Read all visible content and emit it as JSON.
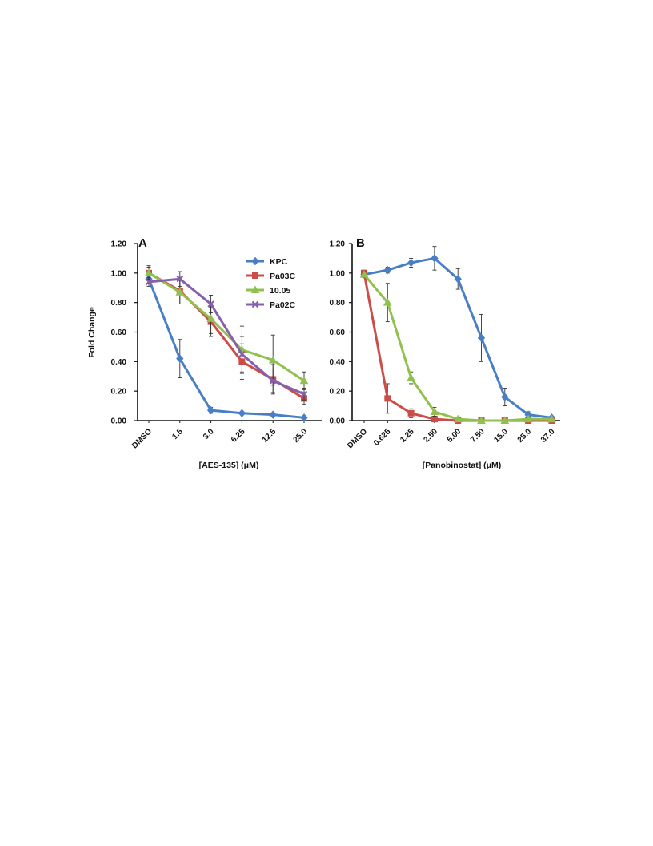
{
  "chart_data": [
    {
      "type": "line",
      "panel_label": "A",
      "xlabel": "[AES-135] (μM)",
      "ylabel": "Fold Change",
      "categories": [
        "DMSO",
        "1.5",
        "3.0",
        "6.25",
        "12.5",
        "25.0"
      ],
      "yticks": [
        "0.00",
        "0.20",
        "0.40",
        "0.60",
        "0.80",
        "1.00",
        "1.20"
      ],
      "ylim": [
        0,
        1.2
      ],
      "grid": false,
      "legend": "top-right",
      "series": [
        {
          "name": "KPC",
          "color": "#4a7ec4",
          "marker": "diamond",
          "values": [
            0.96,
            0.42,
            0.07,
            0.05,
            0.04,
            0.02
          ],
          "errors": [
            0.03,
            0.13,
            0.02,
            0.01,
            0.01,
            0.01
          ]
        },
        {
          "name": "Pa03C",
          "color": "#cc4c48",
          "marker": "square",
          "values": [
            1.0,
            0.88,
            0.67,
            0.4,
            0.28,
            0.15
          ],
          "errors": [
            0.05,
            0.09,
            0.1,
            0.12,
            0.1,
            0.04
          ]
        },
        {
          "name": "10.05",
          "color": "#92c050",
          "marker": "triangle",
          "values": [
            1.0,
            0.87,
            0.69,
            0.48,
            0.41,
            0.27
          ],
          "errors": [
            0.04,
            0.08,
            0.1,
            0.16,
            0.17,
            0.06
          ]
        },
        {
          "name": "Pa02C",
          "color": "#8560ad",
          "marker": "x",
          "values": [
            0.94,
            0.96,
            0.79,
            0.45,
            0.27,
            0.18
          ],
          "errors": [
            0.03,
            0.05,
            0.06,
            0.12,
            0.08,
            0.04
          ]
        }
      ]
    },
    {
      "type": "line",
      "panel_label": "B",
      "xlabel": "[Panobinostat] (μM)",
      "ylabel": "",
      "categories": [
        "DMSO",
        "0.625",
        "1.25",
        "2.50",
        "5.00",
        "7.50",
        "15.0",
        "25.0",
        "37.0"
      ],
      "yticks": [
        "0.00",
        "0.20",
        "0.40",
        "0.60",
        "0.80",
        "1.00",
        "1.20"
      ],
      "ylim": [
        0,
        1.2
      ],
      "grid": false,
      "legend": "none",
      "series": [
        {
          "name": "KPC",
          "color": "#4a7ec4",
          "marker": "diamond",
          "values": [
            0.99,
            1.02,
            1.07,
            1.1,
            0.96,
            0.56,
            0.16,
            0.04,
            0.02
          ],
          "errors": [
            0.02,
            0.02,
            0.03,
            0.08,
            0.07,
            0.16,
            0.06,
            0.02,
            0.01
          ]
        },
        {
          "name": "Pa03C",
          "color": "#cc4c48",
          "marker": "square",
          "values": [
            1.0,
            0.15,
            0.05,
            0.01,
            0.0,
            0.0,
            0.0,
            0.0,
            0.0
          ],
          "errors": [
            0.02,
            0.1,
            0.03,
            0.01,
            0.0,
            0.0,
            0.0,
            0.0,
            0.0
          ]
        },
        {
          "name": "10.05",
          "color": "#92c050",
          "marker": "triangle",
          "values": [
            0.99,
            0.8,
            0.29,
            0.06,
            0.01,
            0.0,
            0.0,
            0.01,
            0.01
          ],
          "errors": [
            0.02,
            0.13,
            0.04,
            0.03,
            0.01,
            0.0,
            0.0,
            0.01,
            0.01
          ]
        }
      ]
    }
  ]
}
